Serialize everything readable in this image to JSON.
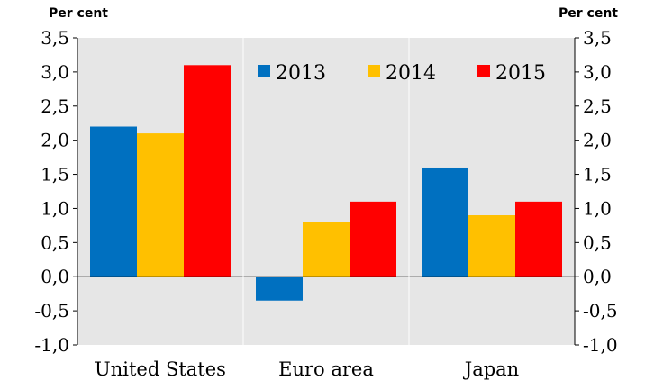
{
  "chart_data": {
    "type": "bar",
    "categories": [
      "United States",
      "Euro area",
      "Japan"
    ],
    "series": [
      {
        "name": "2013",
        "color": "#0070C0",
        "values": [
          2.2,
          -0.35,
          1.6
        ]
      },
      {
        "name": "2014",
        "color": "#FFC000",
        "values": [
          2.1,
          0.8,
          0.9
        ]
      },
      {
        "name": "2015",
        "color": "#FF0000",
        "values": [
          3.1,
          1.1,
          1.1
        ]
      }
    ],
    "ylim": [
      -1.0,
      3.5
    ],
    "yticks": [
      "3,5",
      "3,0",
      "2,5",
      "2,0",
      "1,5",
      "1,0",
      "0,5",
      "0,0",
      "-0,5",
      "-1,0"
    ],
    "ylabel_left": "Per cent",
    "ylabel_right": "Per cent",
    "legend_position": "top-right",
    "background": "#E6E6E6"
  }
}
